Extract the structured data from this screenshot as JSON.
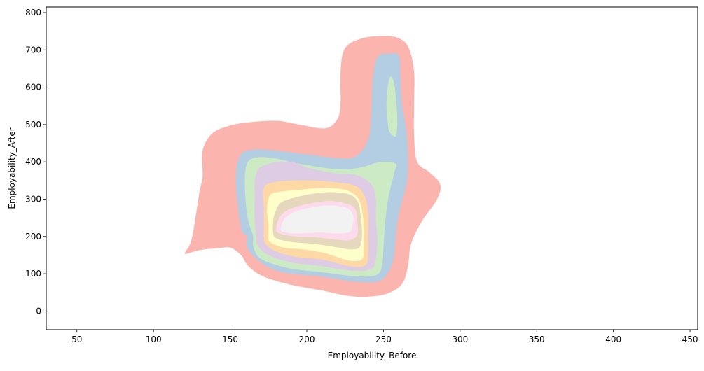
{
  "chart_data": {
    "type": "kde_density_contour",
    "title": "",
    "xlabel": "Employability_Before",
    "ylabel": "Employability_After",
    "xlim": [
      30,
      455
    ],
    "ylim": [
      -50,
      815
    ],
    "xticks": [
      50,
      100,
      150,
      200,
      250,
      300,
      350,
      400,
      450
    ],
    "yticks": [
      0,
      100,
      200,
      300,
      400,
      500,
      600,
      700,
      800
    ],
    "grid": false,
    "legend": "none",
    "fill_levels": [
      {
        "level": 1,
        "color": "#fbb4ae",
        "polygons": [
          [
            [
              121,
              153
            ],
            [
              130,
              163
            ],
            [
              141,
              168
            ],
            [
              150,
              170
            ],
            [
              157,
              150
            ],
            [
              162,
              120
            ],
            [
              172,
              92
            ],
            [
              190,
              70
            ],
            [
              210,
              55
            ],
            [
              225,
              42
            ],
            [
              238,
              38
            ],
            [
              252,
              46
            ],
            [
              262,
              72
            ],
            [
              266,
              120
            ],
            [
              268,
              180
            ],
            [
              275,
              240
            ],
            [
              285,
              300
            ],
            [
              287,
              340
            ],
            [
              280,
              372
            ],
            [
              272,
              400
            ],
            [
              270,
              470
            ],
            [
              270,
              560
            ],
            [
              270,
              640
            ],
            [
              267,
              700
            ],
            [
              262,
              727
            ],
            [
              253,
              737
            ],
            [
              237,
              732
            ],
            [
              225,
              705
            ],
            [
              222,
              640
            ],
            [
              222,
              560
            ],
            [
              220,
              515
            ],
            [
              212,
              490
            ],
            [
              195,
              500
            ],
            [
              180,
              510
            ],
            [
              160,
              505
            ],
            [
              148,
              495
            ],
            [
              138,
              475
            ],
            [
              132,
              430
            ],
            [
              132,
              360
            ],
            [
              130,
              320
            ],
            [
              125,
              195
            ],
            [
              121,
              160
            ]
          ]
        ]
      },
      {
        "level": 2,
        "color": "#b3cde3",
        "polygons": [
          [
            [
              161,
              200
            ],
            [
              161,
              170
            ],
            [
              170,
              130
            ],
            [
              185,
              103
            ],
            [
              210,
              92
            ],
            [
              232,
              78
            ],
            [
              247,
              80
            ],
            [
              254,
              110
            ],
            [
              257,
              150
            ],
            [
              258,
              200
            ],
            [
              260,
              260
            ],
            [
              265,
              340
            ],
            [
              266,
              400
            ],
            [
              265,
              480
            ],
            [
              262,
              560
            ],
            [
              261,
              640
            ],
            [
              260,
              685
            ],
            [
              253,
              690
            ],
            [
              246,
              680
            ],
            [
              243,
              620
            ],
            [
              242,
              530
            ],
            [
              240,
              460
            ],
            [
              232,
              415
            ],
            [
              220,
              410
            ],
            [
              200,
              420
            ],
            [
              180,
              430
            ],
            [
              165,
              433
            ],
            [
              157,
              420
            ],
            [
              154,
              380
            ],
            [
              154,
              320
            ],
            [
              156,
              250
            ],
            [
              158,
              210
            ]
          ]
        ]
      },
      {
        "level": 3,
        "color": "#ccebc5",
        "polygons": [
          [
            [
              165,
              200
            ],
            [
              165,
              175
            ],
            [
              170,
              140
            ],
            [
              188,
              115
            ],
            [
              210,
              104
            ],
            [
              232,
              93
            ],
            [
              245,
              96
            ],
            [
              249,
              120
            ],
            [
              250,
              170
            ],
            [
              251,
              230
            ],
            [
              253,
              300
            ],
            [
              257,
              370
            ],
            [
              258,
              395
            ],
            [
              248,
              400
            ],
            [
              235,
              385
            ],
            [
              220,
              380
            ],
            [
              195,
              395
            ],
            [
              178,
              410
            ],
            [
              165,
              410
            ],
            [
              160,
              380
            ],
            [
              160,
              300
            ],
            [
              162,
              240
            ]
          ],
          [
            [
              254,
              480
            ],
            [
              258,
              470
            ],
            [
              259,
              520
            ],
            [
              257,
              610
            ],
            [
              254,
              625
            ],
            [
              252,
              560
            ],
            [
              253,
              500
            ]
          ]
        ]
      },
      {
        "level": 4,
        "color": "#decbe4",
        "polygons": [
          [
            [
              167,
              200
            ],
            [
              168,
              175
            ],
            [
              175,
              150
            ],
            [
              190,
              130
            ],
            [
              210,
              120
            ],
            [
              230,
              108
            ],
            [
              242,
              113
            ],
            [
              245,
              140
            ],
            [
              246,
              190
            ],
            [
              245,
              250
            ],
            [
              245,
              300
            ],
            [
              242,
              340
            ],
            [
              232,
              365
            ],
            [
              218,
              370
            ],
            [
              200,
              385
            ],
            [
              190,
              400
            ],
            [
              175,
              395
            ],
            [
              167,
              370
            ],
            [
              166,
              300
            ],
            [
              166,
              240
            ]
          ]
        ]
      },
      {
        "level": 5,
        "color": "#fed9a6",
        "polygons": [
          [
            [
              172,
              200
            ],
            [
              173,
              180
            ],
            [
              180,
              160
            ],
            [
              193,
              145
            ],
            [
              210,
              138
            ],
            [
              228,
              120
            ],
            [
              238,
              122
            ],
            [
              240,
              150
            ],
            [
              240,
              200
            ],
            [
              240,
              260
            ],
            [
              238,
              305
            ],
            [
              232,
              335
            ],
            [
              220,
              345
            ],
            [
              205,
              350
            ],
            [
              190,
              350
            ],
            [
              178,
              345
            ],
            [
              172,
              330
            ],
            [
              172,
              270
            ],
            [
              172,
              230
            ]
          ]
        ]
      },
      {
        "level": 6,
        "color": "#ffffcc",
        "polygons": [
          [
            [
              175,
              205
            ],
            [
              176,
              185
            ],
            [
              185,
              170
            ],
            [
              198,
              165
            ],
            [
              212,
              155
            ],
            [
              228,
              135
            ],
            [
              236,
              140
            ],
            [
              237,
              175
            ],
            [
              237,
              225
            ],
            [
              236,
              270
            ],
            [
              233,
              305
            ],
            [
              225,
              325
            ],
            [
              210,
              330
            ],
            [
              195,
              325
            ],
            [
              183,
              320
            ],
            [
              176,
              310
            ],
            [
              174,
              270
            ],
            [
              175,
              235
            ]
          ]
        ]
      },
      {
        "level": 7,
        "color": "#e5d8bd",
        "polygons": [
          [
            [
              178,
              210
            ],
            [
              180,
              195
            ],
            [
              190,
              185
            ],
            [
              205,
              180
            ],
            [
              218,
              172
            ],
            [
              230,
              165
            ],
            [
              235,
              175
            ],
            [
              236,
              215
            ],
            [
              235,
              260
            ],
            [
              233,
              295
            ],
            [
              226,
              315
            ],
            [
              210,
              318
            ],
            [
              193,
              305
            ],
            [
              183,
              290
            ],
            [
              179,
              260
            ],
            [
              178,
              235
            ]
          ]
        ]
      },
      {
        "level": 8,
        "color": "#fddaec",
        "polygons": [
          [
            [
              180,
              220
            ],
            [
              182,
              208
            ],
            [
              192,
              200
            ],
            [
              205,
              198
            ],
            [
              218,
              192
            ],
            [
              228,
              190
            ],
            [
              233,
              205
            ],
            [
              233,
              240
            ],
            [
              232,
              270
            ],
            [
              228,
              285
            ],
            [
              215,
              295
            ],
            [
              198,
              285
            ],
            [
              187,
              270
            ],
            [
              182,
              250
            ]
          ]
        ]
      },
      {
        "level": 9,
        "color": "#f2f2f2",
        "polygons": [
          [
            [
              183,
              220
            ],
            [
              185,
              212
            ],
            [
              193,
              208
            ],
            [
              208,
              210
            ],
            [
              220,
              208
            ],
            [
              228,
              212
            ],
            [
              230,
              235
            ],
            [
              230,
              260
            ],
            [
              225,
              278
            ],
            [
              213,
              283
            ],
            [
              200,
              275
            ],
            [
              190,
              262
            ],
            [
              185,
              245
            ]
          ]
        ]
      }
    ]
  }
}
